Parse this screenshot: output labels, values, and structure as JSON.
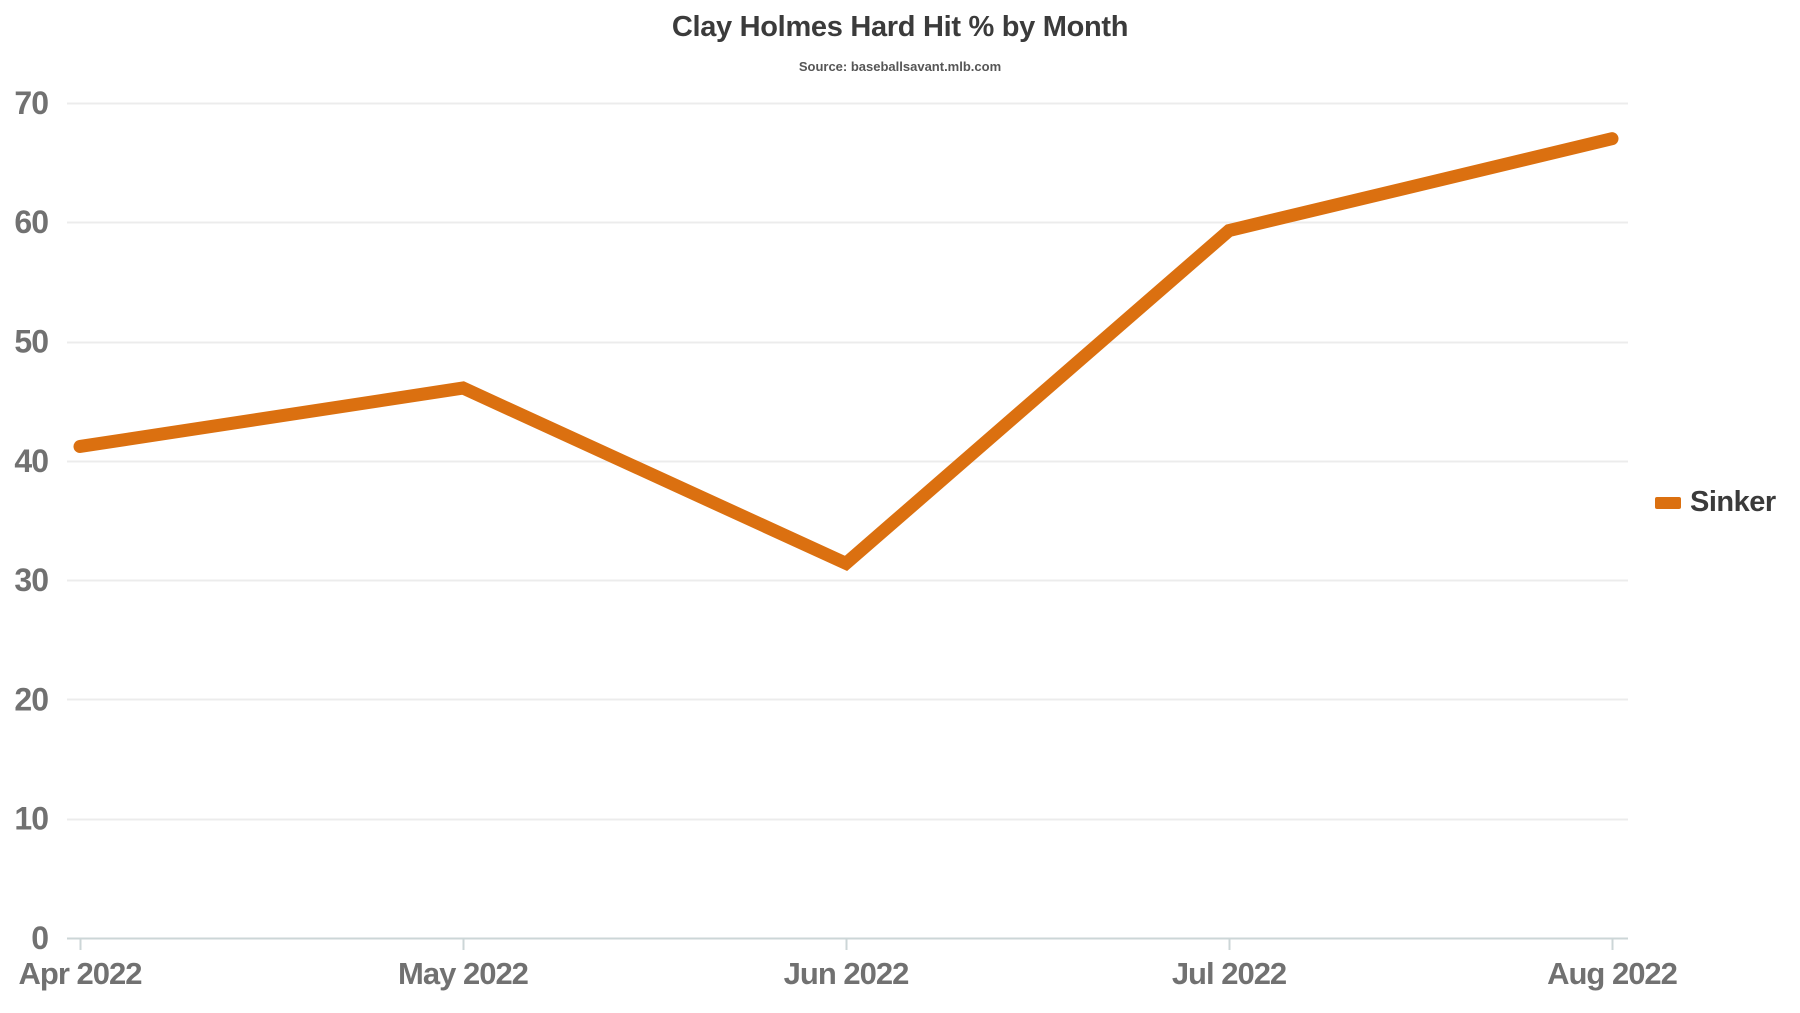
{
  "header": {
    "title": "Clay Holmes Hard Hit % by Month",
    "source": "Source: baseballsavant.mlb.com"
  },
  "legend": {
    "label": "Sinker"
  },
  "colors": {
    "series_orange": "#db7010",
    "title_text": "#3b3b3b",
    "source_text": "#565656",
    "tick_label_text": "#717171",
    "gridline": "#ececec",
    "axis_line": "#ccd6d7",
    "background": "#ffffff"
  },
  "chart_data": {
    "type": "line",
    "title": "Clay Holmes Hard Hit % by Month",
    "subtitle": "Source: baseballsavant.mlb.com",
    "categories": [
      "Apr 2022",
      "May 2022",
      "Jun 2022",
      "Jul 2022",
      "Aug 2022"
    ],
    "series": [
      {
        "name": "Sinker",
        "color": "#db7010",
        "values": [
          41.2,
          46.1,
          31.4,
          59.3,
          67.0
        ]
      }
    ],
    "xlabel": "",
    "ylabel": "",
    "ylim": [
      0,
      70
    ],
    "ytick_step": 10,
    "yticks": [
      0,
      10,
      20,
      30,
      40,
      50,
      60,
      70
    ],
    "grid": true,
    "legend_position": "right"
  }
}
